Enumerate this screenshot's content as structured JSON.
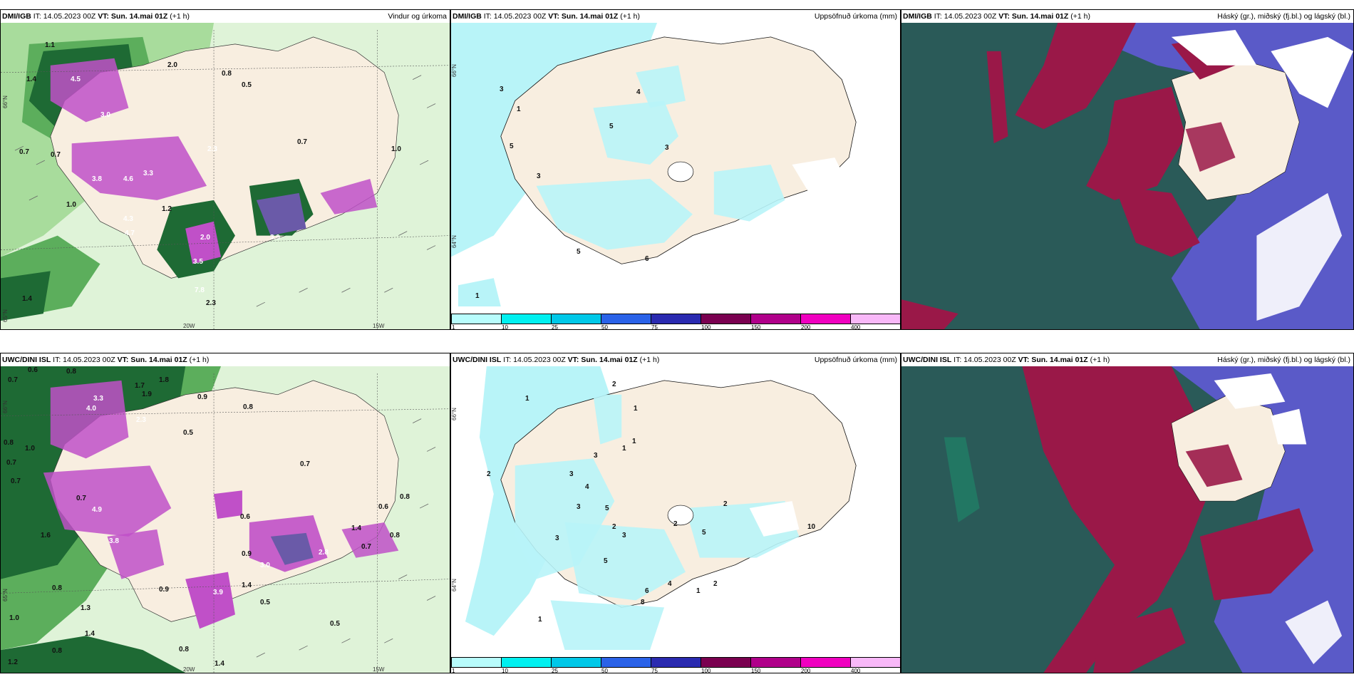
{
  "panels": {
    "top": {
      "wind": {
        "model": "DMI/IGB",
        "it_label": "IT: 14.05.2023 00Z",
        "vt_label": "VT: Sun. 14.mai 01Z",
        "lead": "(+1 h)",
        "product": "Vindur og úrkoma",
        "labels": [
          "1.1",
          "1.4",
          "2.0",
          "0.8",
          "0.5",
          "4.5",
          "3.0",
          "0.7",
          "0.7",
          "3.8",
          "4.6",
          "3.3",
          "2.3",
          "1.0",
          "1.2",
          "0.7",
          "4.3",
          "4.7",
          "2.0",
          "3.5",
          "7.8",
          "2.3",
          "1.0",
          "3.9",
          "1.4"
        ],
        "lat_label": "66°N",
        "lat_label2": "65°N",
        "lon_label1": "20W",
        "lon_label2": "15W"
      },
      "accum": {
        "model": "DMI/IGB",
        "it_label": "IT: 14.05.2023 00Z",
        "vt_label": "VT: Sun. 14.mai 01Z",
        "lead": "(+1 h)",
        "product": "Uppsöfnuð úrkoma (mm)",
        "labels": [
          "1",
          "3",
          "5",
          "3",
          "5",
          "3",
          "6",
          "5",
          "4",
          "1"
        ],
        "lat_label": "66°N",
        "lat_label2": "64°N"
      },
      "cloud": {
        "model": "DMI/IGB",
        "it_label": "IT: 14.05.2023 00Z",
        "vt_label": "VT: Sun. 14.mai 01Z",
        "lead": "(+1 h)",
        "product": "Háský (gr.), miðský (fj.bl.) og lágský (bl.)"
      }
    },
    "bottom": {
      "wind": {
        "model": "UWC/DINI ISL",
        "it_label": "IT: 14.05.2023 00Z",
        "vt_label": "VT: Sun. 14.mai 01Z",
        "lead": "(+1 h)",
        "product": "",
        "labels": [
          "0.7",
          "0.6",
          "0.8",
          "1.7",
          "1.9",
          "1.8",
          "0.9",
          "0.8",
          "0.7",
          "2.3",
          "0.5",
          "0.8",
          "0.7",
          "4.0",
          "3.3",
          "0.7",
          "1.0",
          "0.6",
          "4.9",
          "0.7",
          "0.6",
          "0.8",
          "3.8",
          "0.9",
          "0.5",
          "3.0",
          "2.8",
          "1.4",
          "0.8",
          "0.5",
          "3.9",
          "1.4",
          "1.6",
          "0.7",
          "0.8",
          "1.0",
          "1.3",
          "1.4",
          "0.8",
          "0.9",
          "0.8",
          "1.4",
          "1.2"
        ],
        "lat_label": "66°N",
        "lat_label2": "65°N",
        "lon_label1": "20W",
        "lon_label2": "15W"
      },
      "accum": {
        "model": "UWC/DINI ISL",
        "it_label": "IT: 14.05.2023 00Z",
        "vt_label": "VT: Sun. 14.mai 01Z",
        "lead": "(+1 h)",
        "product": "Uppsöfnuð úrkoma (mm)",
        "labels": [
          "2",
          "1",
          "1",
          "2",
          "1",
          "3",
          "3",
          "4",
          "1",
          "5",
          "3",
          "2",
          "5",
          "2",
          "3",
          "10",
          "3",
          "2",
          "5",
          "1",
          "2",
          "6",
          "4",
          "8",
          "1"
        ],
        "lat_label": "66°N",
        "lat_label2": "64°N"
      },
      "cloud": {
        "model": "UWC/DINI ISL",
        "it_label": "IT: 14.05.2023 00Z",
        "vt_label": "VT: Sun. 14.mai 01Z",
        "lead": "(+1 h)",
        "product": "Háský (gr.), miðský (fj.bl.) og lágský (bl.)"
      }
    }
  },
  "legend": {
    "ticks": [
      "1",
      "10",
      "25",
      "50",
      "75",
      "100",
      "150",
      "200",
      "400"
    ],
    "colors": [
      "#b8fcfc",
      "#00f0f0",
      "#00c8e8",
      "#2a62e8",
      "#2a2ab0",
      "#7a0050",
      "#b0008a",
      "#f000c0",
      "#f8b8f8"
    ]
  },
  "colors": {
    "land": "#f8eee0",
    "sea_wind": "#dff3d8",
    "green_light": "#a8dc9c",
    "green_mid": "#5cae5c",
    "green_dark": "#1e6a34",
    "precip_purple": "#c050c8",
    "precip_blue": "#6a5aa8",
    "cyan_precip": "#b8f4f8",
    "cloud_teal": "#2a5a58",
    "cloud_maroon": "#9a1848",
    "cloud_blue": "#5a5ac8",
    "cloud_white": "#ffffff"
  }
}
